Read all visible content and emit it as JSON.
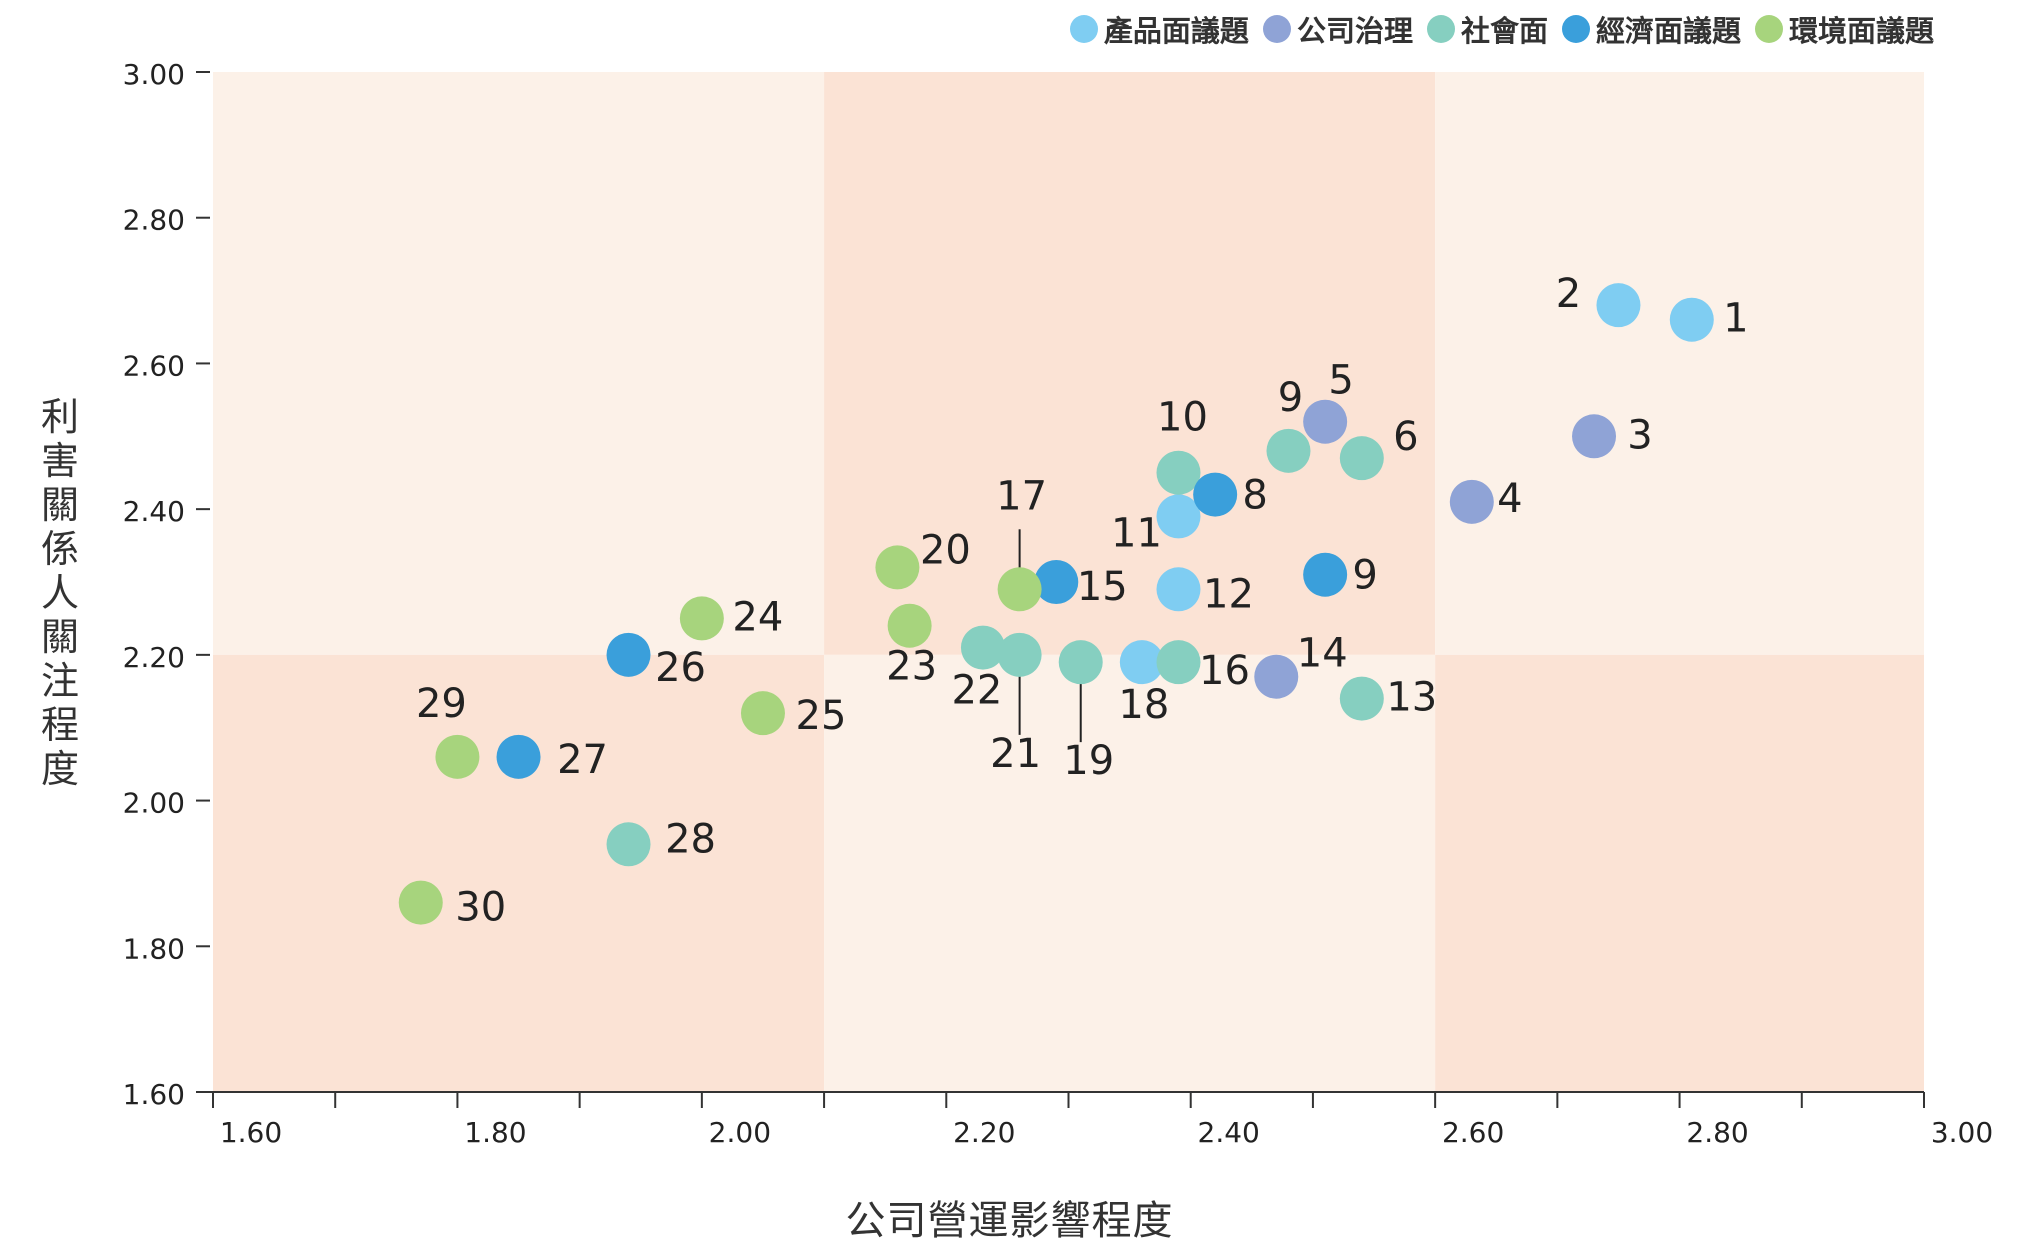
{
  "chart_data": {
    "type": "scatter",
    "xlabel": "公司營運影響程度",
    "ylabel": "利害關係人關注程度",
    "xlim": [
      1.6,
      3.0
    ],
    "ylim": [
      1.6,
      3.0
    ],
    "xticks": [
      "1.60",
      "1.80",
      "2.00",
      "2.20",
      "2.40",
      "2.60",
      "2.80",
      "3.00"
    ],
    "yticks": [
      "1.60",
      "1.80",
      "2.00",
      "2.20",
      "2.40",
      "2.60",
      "2.80",
      "3.00"
    ],
    "quadrant_split": {
      "x": 2.1,
      "y": 2.2
    },
    "quadrant_colors": {
      "light": "#fcf1e8",
      "dark": "#fbe3d5"
    },
    "legend_position": "top-right",
    "series": [
      {
        "name": "產品面議題",
        "color": "#7fcdf2",
        "points": [
          {
            "label": "1",
            "x": 2.81,
            "y": 2.66
          },
          {
            "label": "2",
            "x": 2.75,
            "y": 2.68
          },
          {
            "label": "11",
            "x": 2.39,
            "y": 2.39
          },
          {
            "label": "12",
            "x": 2.39,
            "y": 2.29
          },
          {
            "label": "18",
            "x": 2.36,
            "y": 2.19
          }
        ]
      },
      {
        "name": "公司治理",
        "color": "#8fa3d6",
        "points": [
          {
            "label": "3",
            "x": 2.73,
            "y": 2.5
          },
          {
            "label": "4",
            "x": 2.63,
            "y": 2.41
          },
          {
            "label": "5",
            "x": 2.51,
            "y": 2.52
          },
          {
            "label": "14",
            "x": 2.47,
            "y": 2.17
          }
        ]
      },
      {
        "name": "社會面",
        "color": "#86cfc0",
        "points": [
          {
            "label": "6",
            "x": 2.54,
            "y": 2.47
          },
          {
            "label": "9",
            "x": 2.48,
            "y": 2.48
          },
          {
            "label": "10",
            "x": 2.39,
            "y": 2.45
          },
          {
            "label": "13",
            "x": 2.54,
            "y": 2.14
          },
          {
            "label": "16",
            "x": 2.39,
            "y": 2.19
          },
          {
            "label": "19",
            "x": 2.31,
            "y": 2.19
          },
          {
            "label": "21",
            "x": 2.26,
            "y": 2.2
          },
          {
            "label": "22",
            "x": 2.23,
            "y": 2.21
          },
          {
            "label": "28",
            "x": 1.94,
            "y": 1.94
          }
        ]
      },
      {
        "name": "經濟面議題",
        "color": "#3a9fdb",
        "points": [
          {
            "label": "8",
            "x": 2.42,
            "y": 2.42
          },
          {
            "label": "9",
            "x": 2.51,
            "y": 2.31
          },
          {
            "label": "15",
            "x": 2.29,
            "y": 2.3
          },
          {
            "label": "26",
            "x": 1.94,
            "y": 2.2
          },
          {
            "label": "27",
            "x": 1.85,
            "y": 2.06
          }
        ]
      },
      {
        "name": "環境面議題",
        "color": "#a7d47d",
        "points": [
          {
            "label": "17",
            "x": 2.26,
            "y": 2.29
          },
          {
            "label": "20",
            "x": 2.16,
            "y": 2.32
          },
          {
            "label": "23",
            "x": 2.17,
            "y": 2.24
          },
          {
            "label": "24",
            "x": 2.0,
            "y": 2.25
          },
          {
            "label": "25",
            "x": 2.05,
            "y": 2.12
          },
          {
            "label": "29",
            "x": 1.8,
            "y": 2.06
          },
          {
            "label": "30",
            "x": 1.77,
            "y": 1.86
          }
        ]
      }
    ]
  }
}
